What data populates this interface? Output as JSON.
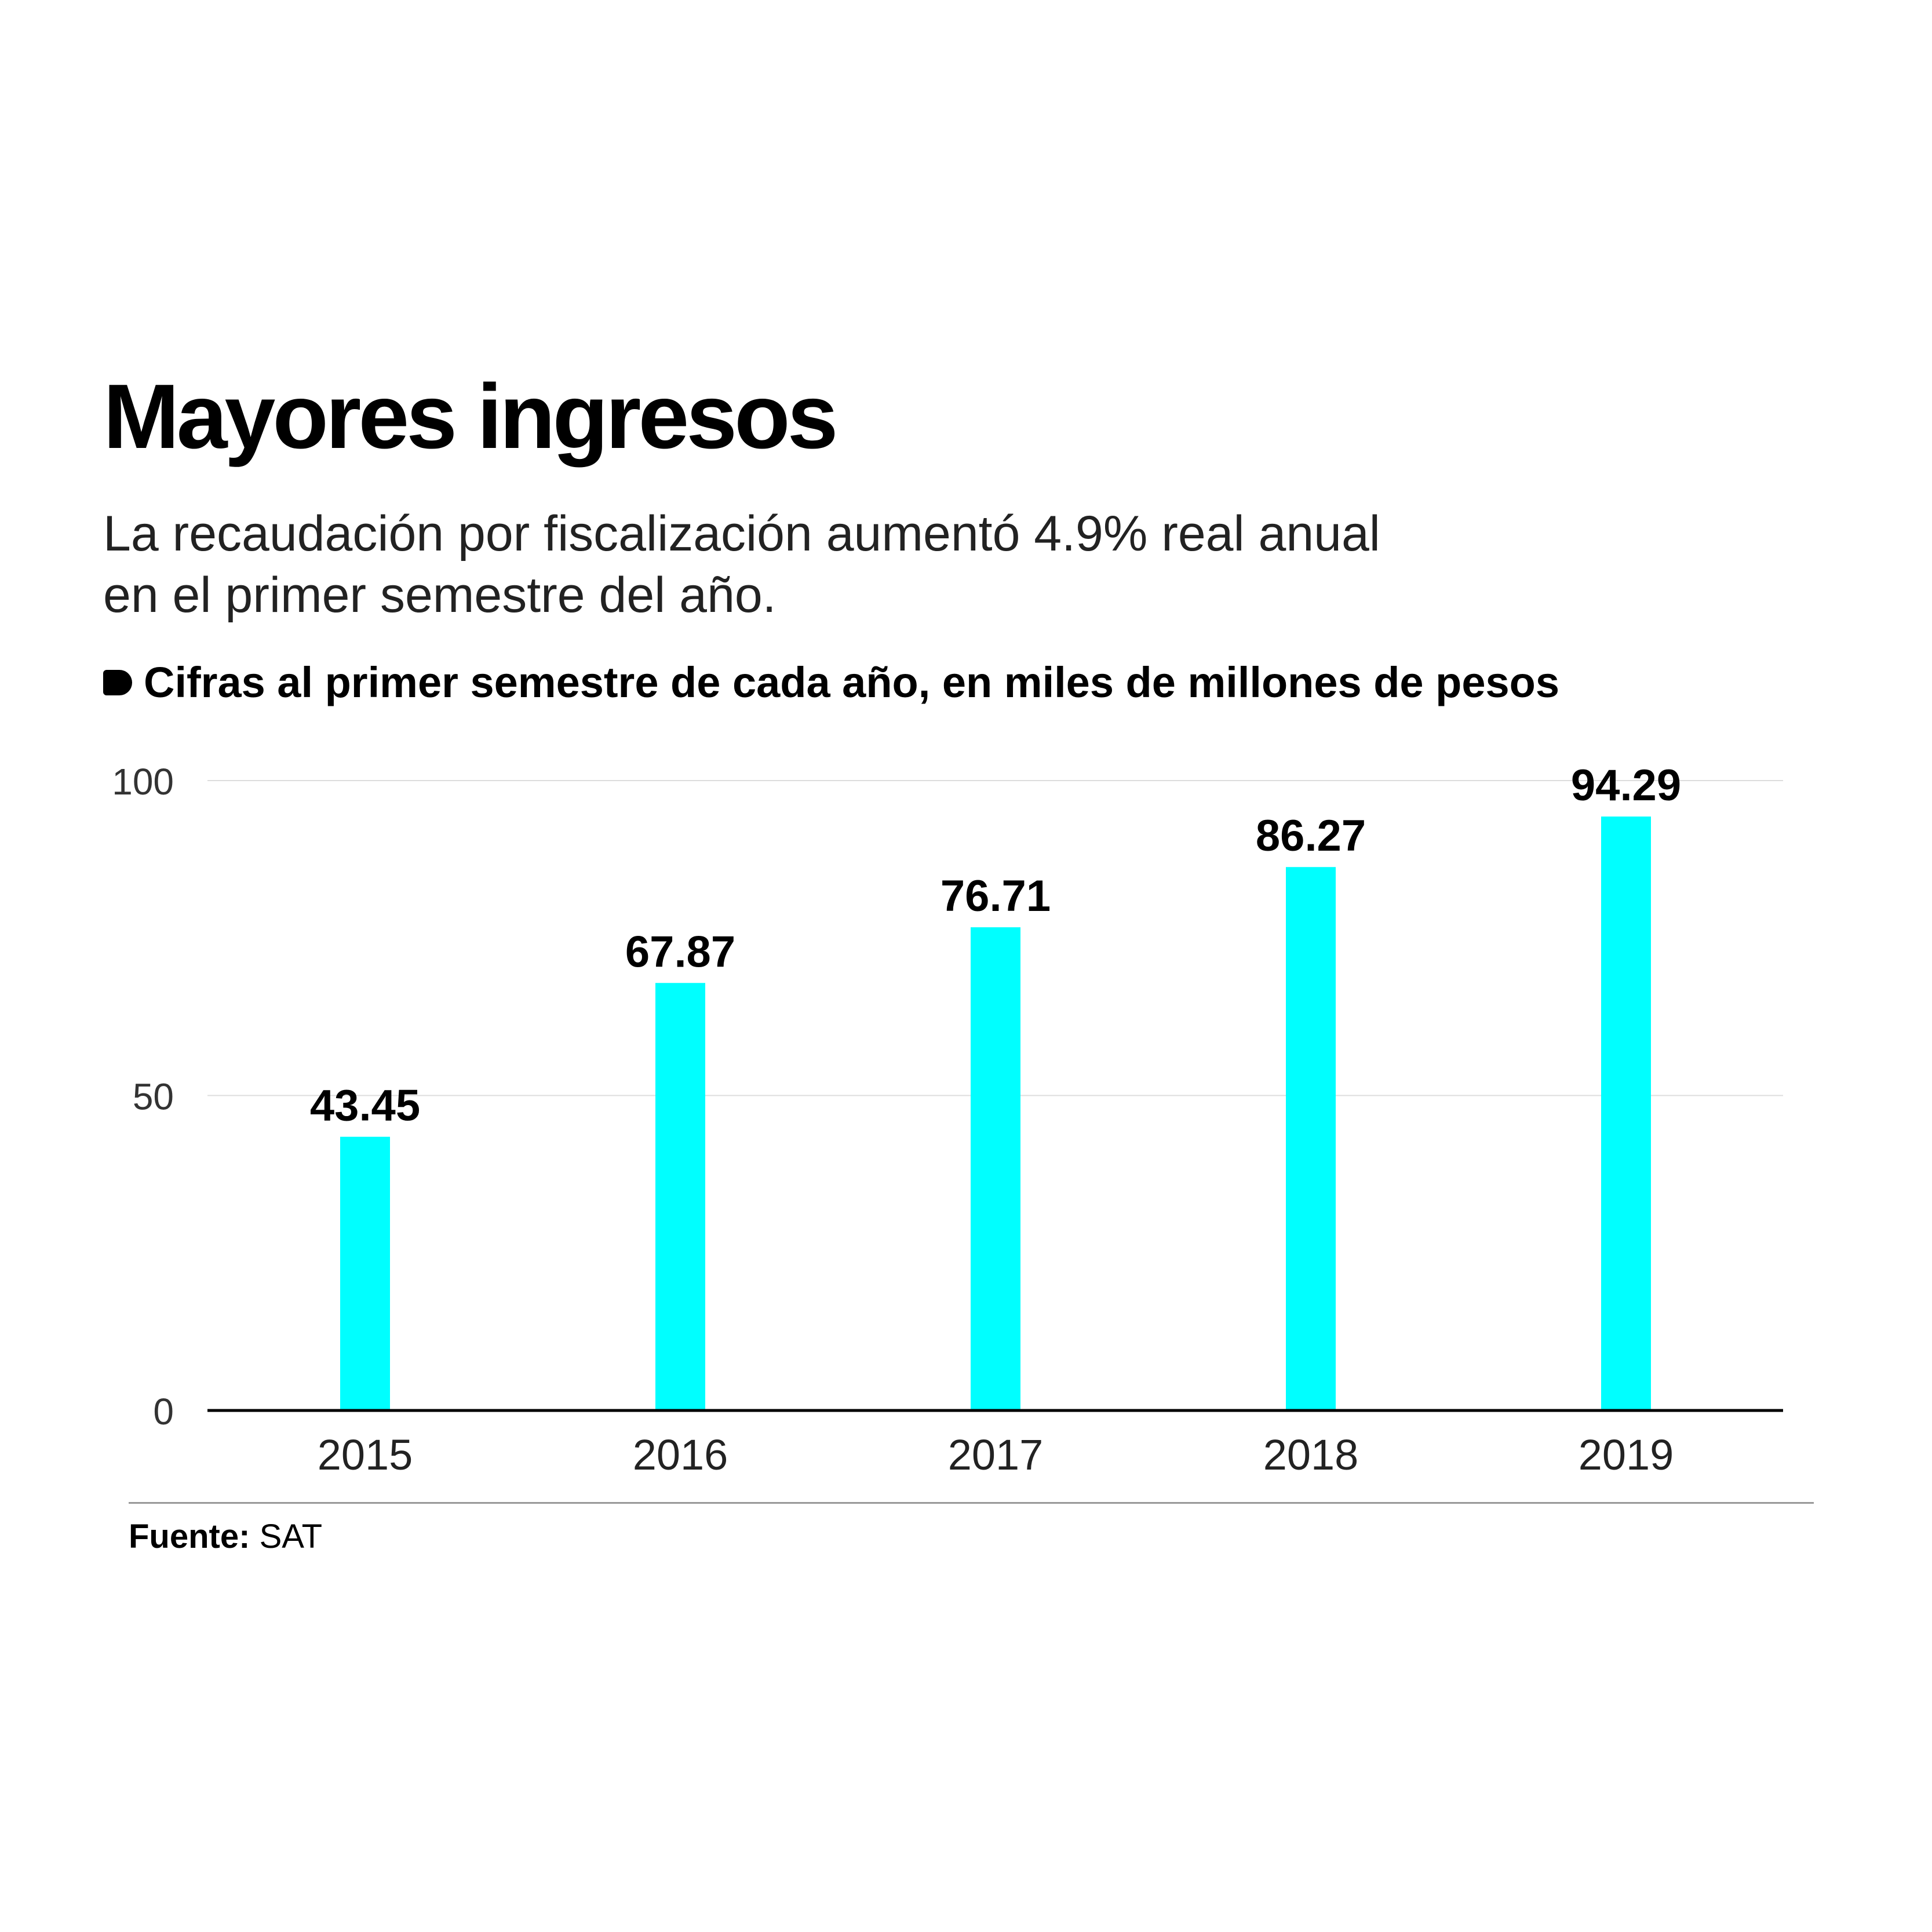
{
  "header": {
    "title": "Mayores ingresos",
    "subtitle_line1": "La recaudación por fiscalización aumentó 4.9% real anual",
    "subtitle_line2": "en el primer semestre del año.",
    "note": "Cifras al primer semestre de cada año, en miles de millones de pesos"
  },
  "source": {
    "label": "Fuente:",
    "value": "SAT"
  },
  "chart_data": {
    "type": "bar",
    "categories": [
      "2015",
      "2016",
      "2017",
      "2018",
      "2019"
    ],
    "values": [
      43.45,
      67.87,
      76.71,
      86.27,
      94.29
    ],
    "data_labels": [
      "43.45",
      "67.87",
      "76.71",
      "86.27",
      "94.29"
    ],
    "yticks": [
      0,
      50,
      100
    ],
    "ylim": [
      0,
      100
    ],
    "grid": true,
    "bar_color": "#00FFFF"
  }
}
